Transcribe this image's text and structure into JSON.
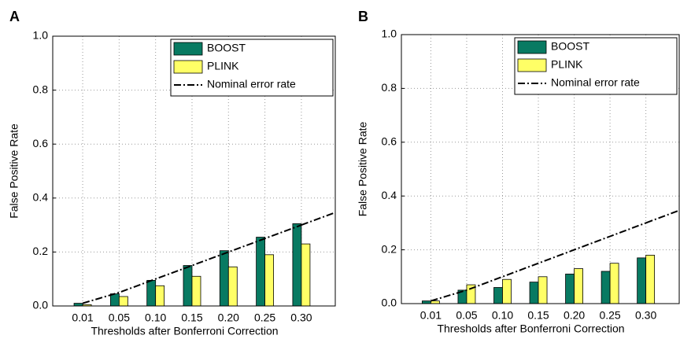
{
  "chart_data": [
    {
      "type": "bar",
      "panel_label": "A",
      "ylabel": "False Positive Rate",
      "xlabel": "Thresholds after Bonferroni Correction",
      "categories": [
        "0.01",
        "0.05",
        "0.10",
        "0.15",
        "0.20",
        "0.25",
        "0.30"
      ],
      "ylim": [
        0,
        1
      ],
      "yticks": [
        {
          "value": 0,
          "label": "0.0"
        },
        {
          "value": 0.2,
          "label": "0.2"
        },
        {
          "value": 0.4,
          "label": "0.4"
        },
        {
          "value": 0.6,
          "label": "0.6"
        },
        {
          "value": 0.8,
          "label": "0.8"
        },
        {
          "value": 1,
          "label": "1.0"
        }
      ],
      "grid": true,
      "legend": "upper right",
      "series": [
        {
          "name": "BOOST",
          "type": "bar",
          "color": "#087a62",
          "values": [
            0.01,
            0.045,
            0.095,
            0.15,
            0.205,
            0.255,
            0.305
          ]
        },
        {
          "name": "PLINK",
          "type": "bar",
          "color": "#ffff66",
          "values": [
            0.005,
            0.035,
            0.075,
            0.11,
            0.145,
            0.19,
            0.23
          ]
        },
        {
          "name": "Nominal error rate",
          "type": "line",
          "color": "#000000",
          "values": [
            0.01,
            0.05,
            0.1,
            0.15,
            0.2,
            0.25,
            0.3
          ]
        }
      ]
    },
    {
      "type": "bar",
      "panel_label": "B",
      "ylabel": "False Positive Rate",
      "xlabel": "Thresholds after Bonferroni Correction",
      "categories": [
        "0.01",
        "0.05",
        "0.10",
        "0.15",
        "0.20",
        "0.25",
        "0.30"
      ],
      "ylim": [
        0,
        1
      ],
      "yticks": [
        {
          "value": 0,
          "label": "0.0"
        },
        {
          "value": 0.2,
          "label": "0.2"
        },
        {
          "value": 0.4,
          "label": "0.4"
        },
        {
          "value": 0.6,
          "label": "0.6"
        },
        {
          "value": 0.8,
          "label": "0.8"
        },
        {
          "value": 1,
          "label": "1.0"
        }
      ],
      "grid": true,
      "legend": "upper right",
      "series": [
        {
          "name": "BOOST",
          "type": "bar",
          "color": "#087a62",
          "values": [
            0.01,
            0.05,
            0.06,
            0.08,
            0.11,
            0.12,
            0.17
          ]
        },
        {
          "name": "PLINK",
          "type": "bar",
          "color": "#ffff66",
          "values": [
            0.01,
            0.07,
            0.09,
            0.1,
            0.13,
            0.15,
            0.18
          ]
        },
        {
          "name": "Nominal error rate",
          "type": "line",
          "color": "#000000",
          "values": [
            0.01,
            0.05,
            0.1,
            0.15,
            0.2,
            0.25,
            0.3
          ]
        }
      ]
    }
  ]
}
